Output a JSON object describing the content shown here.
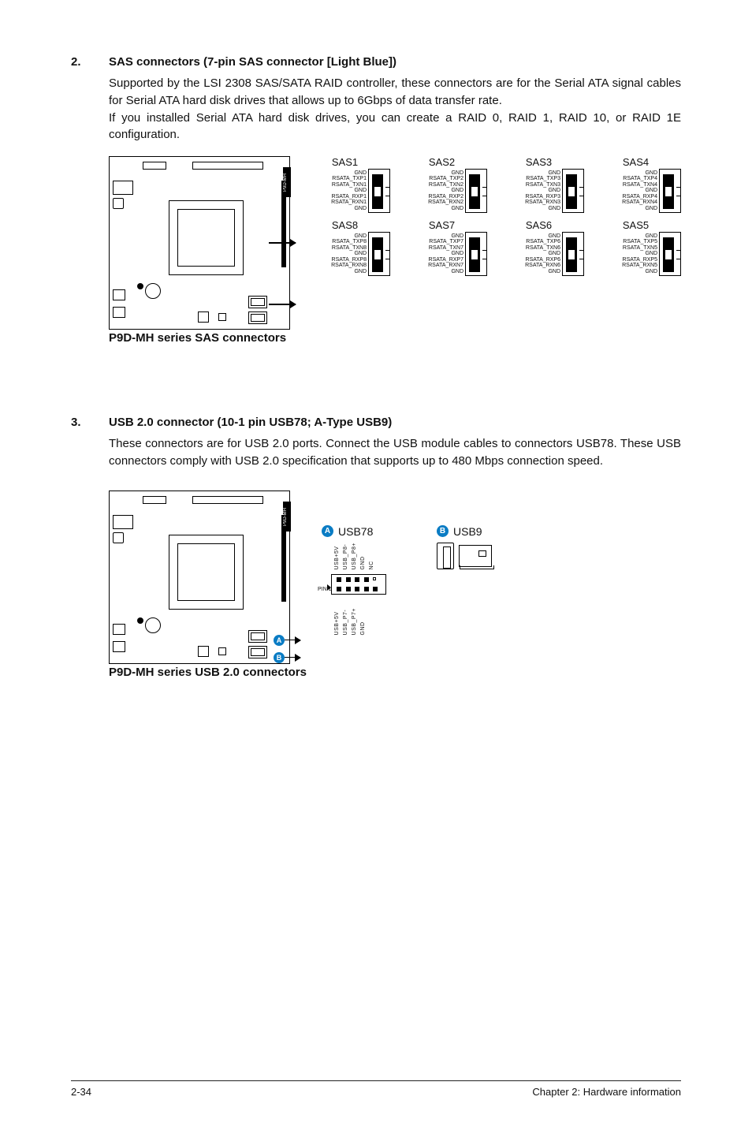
{
  "sections": {
    "sas": {
      "num": "2.",
      "title": "SAS connectors (7-pin SAS connector [Light Blue])",
      "p1": "Supported by the LSI 2308 SAS/SATA RAID controller, these connectors are for the Serial ATA signal cables for Serial ATA hard disk drives that allows up to 6Gbps of data transfer rate.",
      "p2": "If you installed Serial ATA hard disk drives, you can create a RAID 0, RAID 1, RAID 10, or RAID 1E configuration.",
      "caption": "P9D-MH series SAS connectors",
      "mobo_tag": "P9D-MH",
      "row1": [
        {
          "name": "SAS1",
          "pins": "GND\nRSATA_TXP1\nRSATA_TXN1\nGND\nRSATA_RXP1\nRSATA_RXN1\nGND"
        },
        {
          "name": "SAS2",
          "pins": "GND\nRSATA_TXP2\nRSATA_TXN2\nGND\nRSATA_RXP2\nRSATA_RXN2\nGND"
        },
        {
          "name": "SAS3",
          "pins": "GND\nRSATA_TXP3\nRSATA_TXN3\nGND\nRSATA_RXP3\nRSATA_RXN3\nGND"
        },
        {
          "name": "SAS4",
          "pins": "GND\nRSATA_TXP4\nRSATA_TXN4\nGND\nRSATA_RXP4\nRSATA_RXN4\nGND"
        }
      ],
      "row2": [
        {
          "name": "SAS8",
          "pins": "GND\nRSATA_TXP8\nRSATA_TXN8\nGND\nRSATA_RXP8\nRSATA_RXN8\nGND"
        },
        {
          "name": "SAS7",
          "pins": "GND\nRSATA_TXP7\nRSATA_TXN7\nGND\nRSATA_RXP7\nRSATA_RXN7\nGND"
        },
        {
          "name": "SAS6",
          "pins": "GND\nRSATA_TXP6\nRSATA_TXN6\nGND\nRSATA_RXP6\nRSATA_RXN6\nGND"
        },
        {
          "name": "SAS5",
          "pins": "GND\nRSATA_TXP5\nRSATA_TXN5\nGND\nRSATA_RXP5\nRSATA_RXN5\nGND"
        }
      ]
    },
    "usb": {
      "num": "3.",
      "title": "USB 2.0 connector (10-1 pin USB78; A-Type USB9)",
      "p1": "These connectors are for USB 2.0 ports. Connect the USB module cables to connectors USB78. These USB connectors comply with USB 2.0 specification that supports up to 480 Mbps connection speed.",
      "caption": "P9D-MH series USB 2.0 connectors",
      "mobo_tag": "P9D-MH",
      "badge_a": "A",
      "badge_b": "B",
      "usb78": {
        "name": "USB78",
        "top_pins": [
          "USB+5V",
          "USB_P8-",
          "USB_P8+",
          "GND",
          "NC"
        ],
        "bot_pins": [
          "USB+5V",
          "USB_P7-",
          "USB_P7+",
          "GND"
        ],
        "pin1": "PIN 1"
      },
      "usb9": {
        "name": "USB9"
      }
    }
  },
  "footer": {
    "left": "2-34",
    "right": "Chapter 2: Hardware information"
  },
  "colors": {
    "badge": "#0a7cc4",
    "text": "#111111"
  }
}
